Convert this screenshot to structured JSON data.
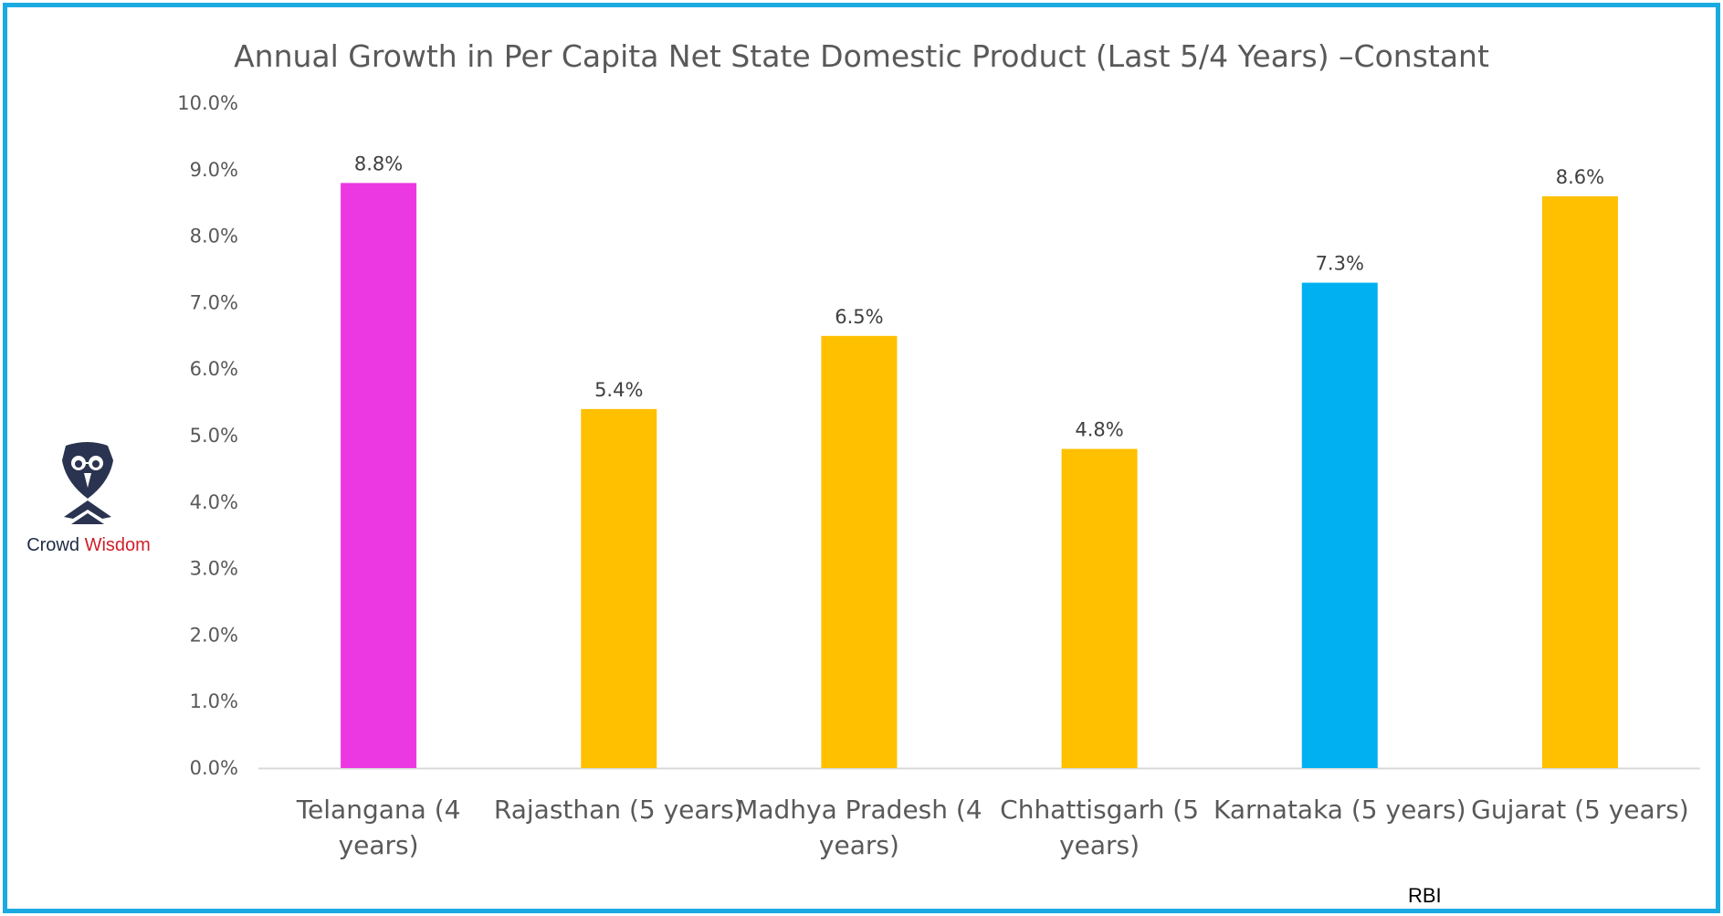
{
  "chart_data": {
    "type": "bar",
    "title": "Annual Growth in Per Capita Net State Domestic Product (Last 5/4 Years) –Constant",
    "categories": [
      [
        "Telangana (4",
        "years)"
      ],
      [
        "Rajasthan (5 years)"
      ],
      [
        "Madhya Pradesh (4",
        "years)"
      ],
      [
        "Chhattisgarh (5",
        "years)"
      ],
      [
        "Karnataka (5 years)"
      ],
      [
        "Gujarat (5 years)"
      ]
    ],
    "values": [
      8.8,
      5.4,
      6.5,
      4.8,
      7.3,
      8.6
    ],
    "data_labels": [
      "8.8%",
      "5.4%",
      "6.5%",
      "4.8%",
      "7.3%",
      "8.6%"
    ],
    "bar_colors": [
      "#ec38e2",
      "#ffc000",
      "#ffc000",
      "#ffc000",
      "#00b0f0",
      "#ffc000"
    ],
    "ylim": [
      0,
      10
    ],
    "yticks": [
      "0.0%",
      "1.0%",
      "2.0%",
      "3.0%",
      "4.0%",
      "5.0%",
      "6.0%",
      "7.0%",
      "8.0%",
      "9.0%",
      "10.0%"
    ],
    "xlabel": "",
    "ylabel": "",
    "grid": false,
    "legend": "none"
  },
  "logo": {
    "word1": "Crowd",
    "word2": "Wisdom",
    "icon": "owl-icon"
  },
  "source": "RBI",
  "colors": {
    "frame": "#1ba9e1",
    "axis_text": "#595959",
    "baseline": "#d9d9d9"
  }
}
